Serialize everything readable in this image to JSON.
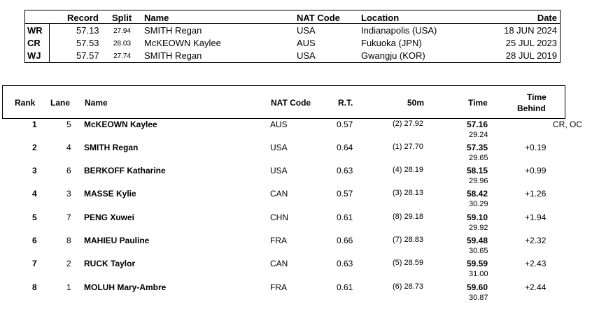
{
  "records": {
    "headers": {
      "record": "Record",
      "split": "Split",
      "name": "Name",
      "nat": "NAT Code",
      "location": "Location",
      "date": "Date"
    },
    "rows": [
      {
        "code": "WR",
        "record": "57.13",
        "split": "27.94",
        "name": "SMITH Regan",
        "nat": "USA",
        "location": "Indianapolis (USA)",
        "date": "18 JUN 2024"
      },
      {
        "code": "CR",
        "record": "57.53",
        "split": "28.03",
        "name": "McKEOWN Kaylee",
        "nat": "AUS",
        "location": "Fukuoka (JPN)",
        "date": "25 JUL 2023"
      },
      {
        "code": "WJ",
        "record": "57.57",
        "split": "27.74",
        "name": "SMITH Regan",
        "nat": "USA",
        "location": "Gwangju (KOR)",
        "date": "28 JUL 2019"
      }
    ]
  },
  "results": {
    "headers": {
      "rank": "Rank",
      "lane": "Lane",
      "name": "Name",
      "nat": "NAT Code",
      "rt": "R.T.",
      "split50": "50m",
      "time": "Time",
      "behind_line1": "Time",
      "behind_line2": "Behind"
    },
    "rows": [
      {
        "rank": "1",
        "lane": "5",
        "name": "McKEOWN Kaylee",
        "nat": "AUS",
        "rt": "0.57",
        "split50": "(2) 27.92",
        "time": "57.16",
        "second_split": "29.24",
        "behind": "",
        "records": "CR, OC"
      },
      {
        "rank": "2",
        "lane": "4",
        "name": "SMITH Regan",
        "nat": "USA",
        "rt": "0.64",
        "split50": "(1) 27.70",
        "time": "57.35",
        "second_split": "29.65",
        "behind": "+0.19",
        "records": ""
      },
      {
        "rank": "3",
        "lane": "6",
        "name": "BERKOFF Katharine",
        "nat": "USA",
        "rt": "0.63",
        "split50": "(4) 28.19",
        "time": "58.15",
        "second_split": "29.96",
        "behind": "+0.99",
        "records": ""
      },
      {
        "rank": "4",
        "lane": "3",
        "name": "MASSE Kylie",
        "nat": "CAN",
        "rt": "0.57",
        "split50": "(3) 28.13",
        "time": "58.42",
        "second_split": "30.29",
        "behind": "+1.26",
        "records": ""
      },
      {
        "rank": "5",
        "lane": "7",
        "name": "PENG Xuwei",
        "nat": "CHN",
        "rt": "0.61",
        "split50": "(8) 29.18",
        "time": "59.10",
        "second_split": "29.92",
        "behind": "+1.94",
        "records": ""
      },
      {
        "rank": "6",
        "lane": "8",
        "name": "MAHIEU Pauline",
        "nat": "FRA",
        "rt": "0.66",
        "split50": "(7) 28.83",
        "time": "59.48",
        "second_split": "30.65",
        "behind": "+2.32",
        "records": ""
      },
      {
        "rank": "7",
        "lane": "2",
        "name": "RUCK Taylor",
        "nat": "CAN",
        "rt": "0.63",
        "split50": "(5) 28.59",
        "time": "59.59",
        "second_split": "31.00",
        "behind": "+2.43",
        "records": ""
      },
      {
        "rank": "8",
        "lane": "1",
        "name": "MOLUH Mary-Ambre",
        "nat": "FRA",
        "rt": "0.61",
        "split50": "(6) 28.73",
        "time": "59.60",
        "second_split": "30.87",
        "behind": "+2.44",
        "records": ""
      }
    ]
  }
}
